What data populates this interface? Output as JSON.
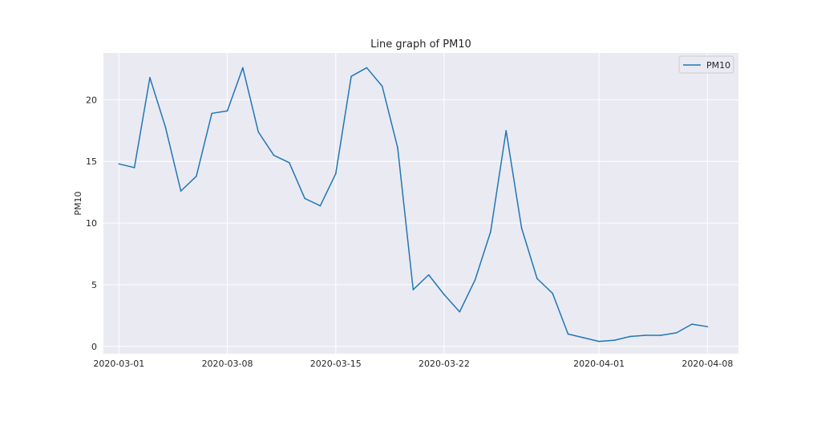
{
  "chart_data": {
    "type": "line",
    "title": "Line graph of PM10",
    "xlabel": "",
    "ylabel": "PM10",
    "x": [
      "2020-03-01",
      "2020-03-02",
      "2020-03-03",
      "2020-03-04",
      "2020-03-05",
      "2020-03-06",
      "2020-03-07",
      "2020-03-08",
      "2020-03-09",
      "2020-03-10",
      "2020-03-11",
      "2020-03-12",
      "2020-03-13",
      "2020-03-14",
      "2020-03-15",
      "2020-03-16",
      "2020-03-17",
      "2020-03-18",
      "2020-03-19",
      "2020-03-20",
      "2020-03-21",
      "2020-03-22",
      "2020-03-23",
      "2020-03-24",
      "2020-03-25",
      "2020-03-26",
      "2020-03-27",
      "2020-03-28",
      "2020-03-29",
      "2020-03-30",
      "2020-03-31",
      "2020-04-01",
      "2020-04-02",
      "2020-04-03",
      "2020-04-04",
      "2020-04-05",
      "2020-04-06",
      "2020-04-07",
      "2020-04-08"
    ],
    "series": [
      {
        "name": "PM10",
        "color": "#1f77b4",
        "values": [
          14.8,
          14.5,
          21.8,
          17.8,
          12.6,
          13.8,
          18.9,
          19.1,
          22.6,
          17.4,
          15.5,
          14.9,
          12.0,
          11.4,
          14.0,
          21.9,
          22.6,
          21.1,
          16.1,
          4.6,
          5.8,
          4.2,
          2.8,
          5.4,
          9.3,
          17.5,
          9.6,
          5.5,
          4.3,
          1.0,
          0.7,
          0.4,
          0.5,
          0.8,
          0.9,
          0.9,
          1.1,
          1.8,
          1.6
        ]
      }
    ],
    "xticks": [
      "2020-03-01",
      "2020-03-08",
      "2020-03-15",
      "2020-03-22",
      "2020-04-01",
      "2020-04-08"
    ],
    "yticks": [
      0,
      5,
      10,
      15,
      20
    ],
    "ylim": [
      -0.6,
      23.8
    ],
    "xlim": [
      "2020-02-29",
      "2020-04-10"
    ],
    "grid": true,
    "legend_position": "top-right",
    "background": "#eaeaf2",
    "grid_color": "#ffffff"
  }
}
